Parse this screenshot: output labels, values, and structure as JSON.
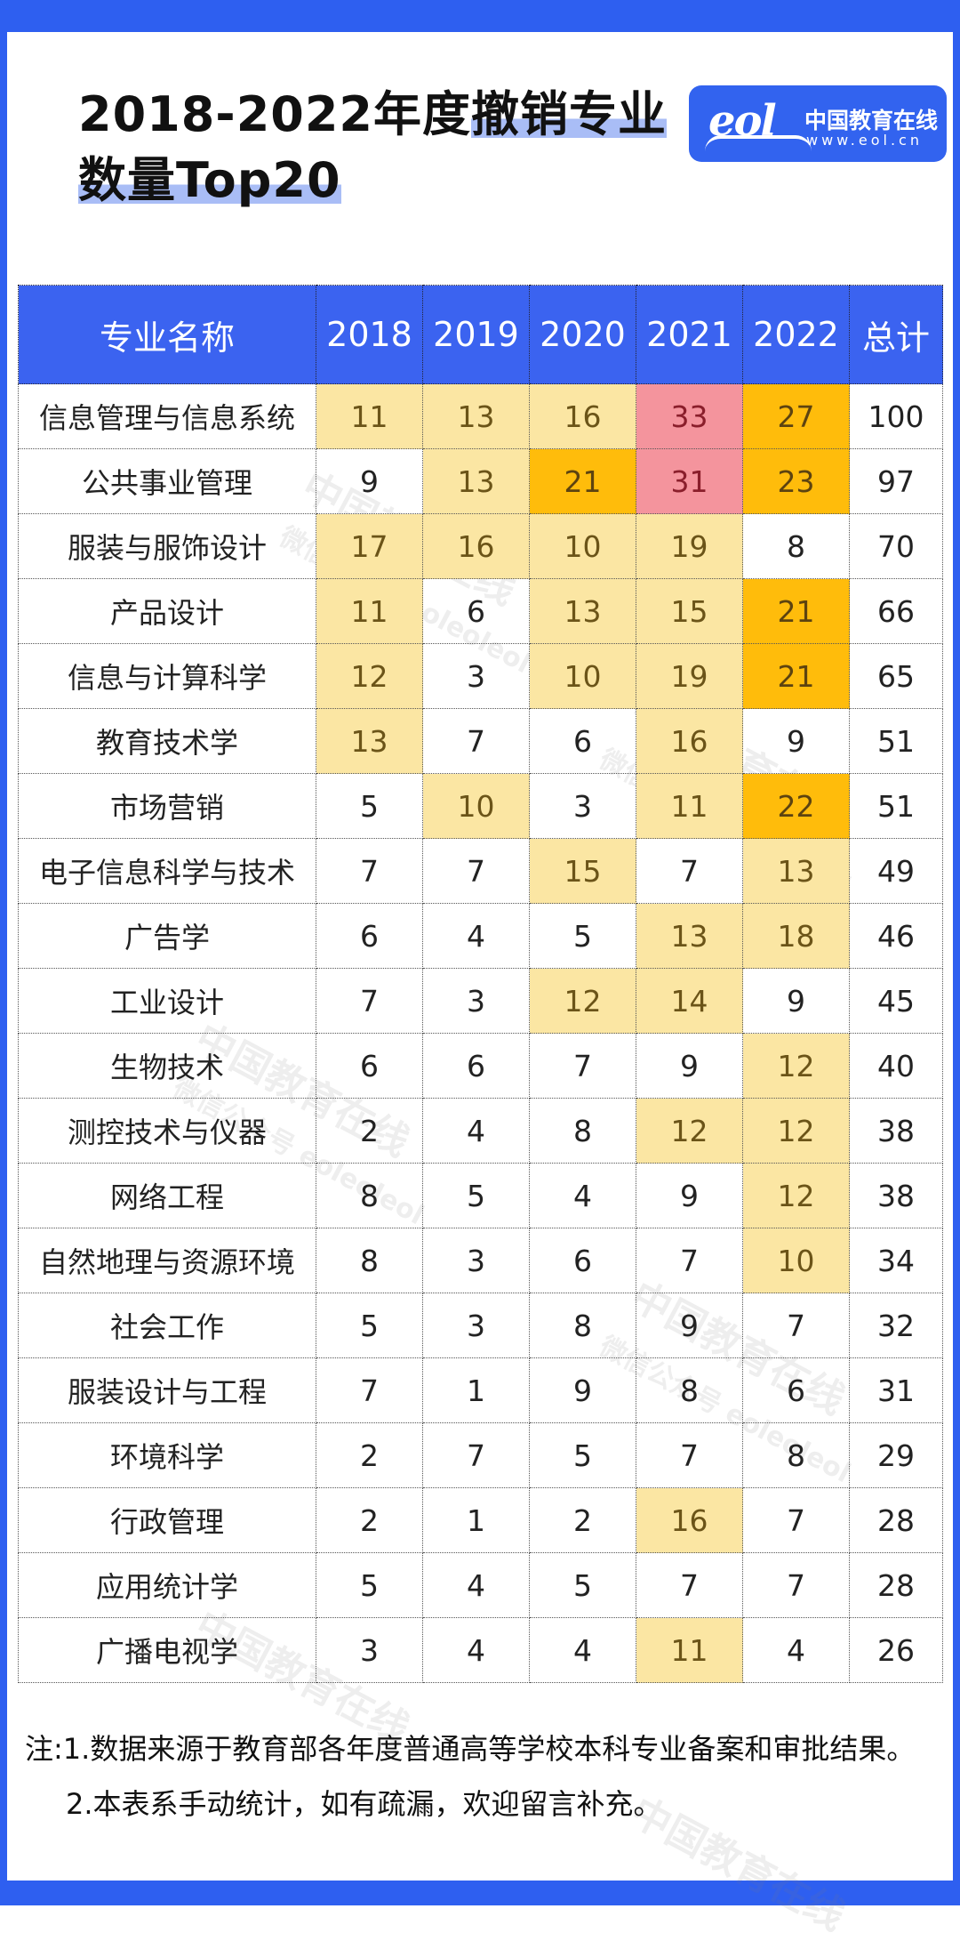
{
  "title": {
    "line1_plain": "2018-2022年度",
    "line1_hl": "撤销专业",
    "line2_hl": "数量Top20"
  },
  "logo": {
    "mark": "eol",
    "cn": "中国教育在线",
    "url": "www.eol.cn"
  },
  "colors": {
    "frame": "#2e5ff0",
    "header": "#3b63f0",
    "light_yellow": "#fbe6a3",
    "orange": "#ffbc0b",
    "pink": "#f4949d"
  },
  "chart_data": {
    "type": "table",
    "title": "2018-2022年度撤销专业数量Top20",
    "columns": [
      "专业名称",
      "2018",
      "2019",
      "2020",
      "2021",
      "2022",
      "总计"
    ],
    "rows": [
      {
        "name": "信息管理与信息系统",
        "values": [
          11,
          13,
          16,
          33,
          27
        ],
        "total": 100
      },
      {
        "name": "公共事业管理",
        "values": [
          9,
          13,
          21,
          31,
          23
        ],
        "total": 97
      },
      {
        "name": "服装与服饰设计",
        "values": [
          17,
          16,
          10,
          19,
          8
        ],
        "total": 70
      },
      {
        "name": "产品设计",
        "values": [
          11,
          6,
          13,
          15,
          21
        ],
        "total": 66
      },
      {
        "name": "信息与计算科学",
        "values": [
          12,
          3,
          10,
          19,
          21
        ],
        "total": 65
      },
      {
        "name": "教育技术学",
        "values": [
          13,
          7,
          6,
          16,
          9
        ],
        "total": 51
      },
      {
        "name": "市场营销",
        "values": [
          5,
          10,
          3,
          11,
          22
        ],
        "total": 51
      },
      {
        "name": "电子信息科学与技术",
        "values": [
          7,
          7,
          15,
          7,
          13
        ],
        "total": 49
      },
      {
        "name": "广告学",
        "values": [
          6,
          4,
          5,
          13,
          18
        ],
        "total": 46
      },
      {
        "name": "工业设计",
        "values": [
          7,
          3,
          12,
          14,
          9
        ],
        "total": 45
      },
      {
        "name": "生物技术",
        "values": [
          6,
          6,
          7,
          9,
          12
        ],
        "total": 40
      },
      {
        "name": "测控技术与仪器",
        "values": [
          2,
          4,
          8,
          12,
          12
        ],
        "total": 38
      },
      {
        "name": "网络工程",
        "values": [
          8,
          5,
          4,
          9,
          12
        ],
        "total": 38
      },
      {
        "name": "自然地理与资源环境",
        "values": [
          8,
          3,
          6,
          7,
          10
        ],
        "total": 34
      },
      {
        "name": "社会工作",
        "values": [
          5,
          3,
          8,
          9,
          7
        ],
        "total": 32
      },
      {
        "name": "服装设计与工程",
        "values": [
          7,
          1,
          9,
          8,
          6
        ],
        "total": 31
      },
      {
        "name": "环境科学",
        "values": [
          2,
          7,
          5,
          7,
          8
        ],
        "total": 29
      },
      {
        "name": "行政管理",
        "values": [
          2,
          1,
          2,
          16,
          7
        ],
        "total": 28
      },
      {
        "name": "应用统计学",
        "values": [
          5,
          4,
          5,
          7,
          7
        ],
        "total": 28
      },
      {
        "name": "广播电视学",
        "values": [
          3,
          4,
          4,
          11,
          4
        ],
        "total": 26
      }
    ],
    "color_rule": {
      "light_yellow": "10-19",
      "orange": "20-29",
      "pink": "30+"
    }
  },
  "notes": [
    "注:1.数据来源于教育部各年度普通高等学校本科专业备案和审批结果。",
    "2.本表系手动统计，如有疏漏，欢迎留言补充。"
  ],
  "watermark": [
    "中国教育在线",
    "微信公众号 eoleoleol"
  ]
}
